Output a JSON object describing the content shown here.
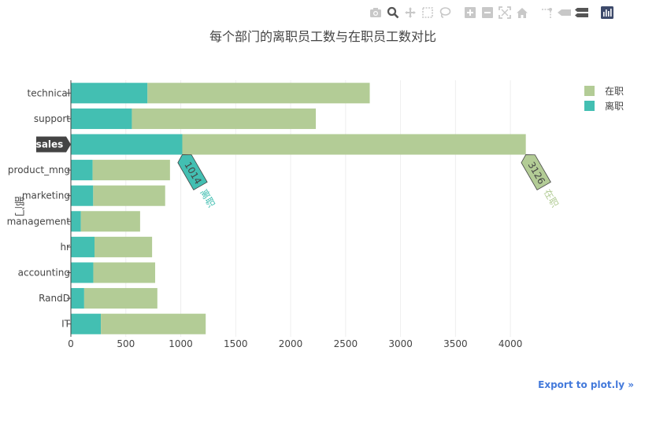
{
  "modebar": {
    "icons": [
      "camera-icon",
      "zoom-icon",
      "pan-icon",
      "box-select-icon",
      "lasso-select-icon",
      "zoom-in-icon",
      "zoom-out-icon",
      "autoscale-icon",
      "home-icon",
      "spike-lines-icon",
      "hover-closest-icon",
      "hover-compare-icon",
      "plotly-logo-icon"
    ]
  },
  "export_link": "Export to plot.ly »",
  "chart_data": {
    "type": "bar",
    "orientation": "horizontal",
    "barmode": "stack",
    "title": "每个部门的离职员工数与在职员工数对比",
    "xlabel": "",
    "ylabel": "部门",
    "xlim": [
      0,
      4300
    ],
    "x_ticks": [
      0,
      500,
      1000,
      1500,
      2000,
      2500,
      3000,
      3500,
      4000
    ],
    "categories": [
      "technical",
      "support",
      "sales",
      "product_mng",
      "marketing",
      "management",
      "hr",
      "accounting",
      "RandD",
      "IT"
    ],
    "series": [
      {
        "name": "离职",
        "color": "#43bfb2",
        "values": [
          697,
          555,
          1014,
          198,
          203,
          91,
          215,
          204,
          121,
          273
        ]
      },
      {
        "name": "在职",
        "color": "#b3cc96",
        "values": [
          2023,
          1674,
          3126,
          704,
          655,
          539,
          524,
          563,
          666,
          954
        ]
      }
    ],
    "legend_order": [
      "在职",
      "离职"
    ],
    "legend_position": "top-right",
    "hover": {
      "category": "sales",
      "labels": [
        {
          "series": "离职",
          "text": "1014"
        },
        {
          "series": "在职",
          "text": "3126"
        }
      ]
    },
    "grid": true
  }
}
